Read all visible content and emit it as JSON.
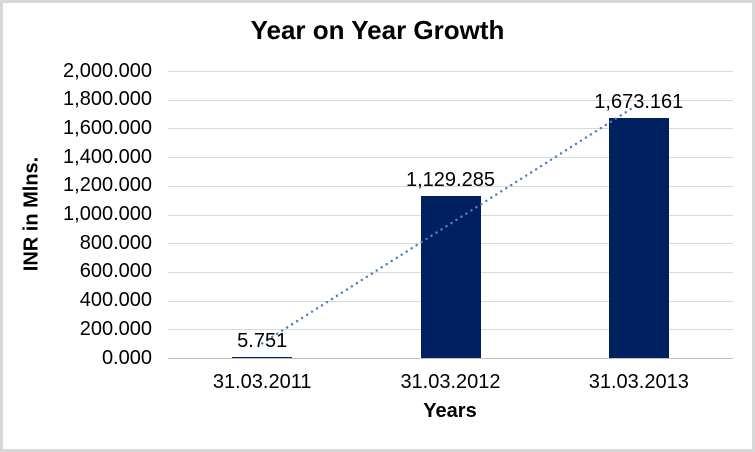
{
  "chart_data": {
    "type": "bar",
    "title": "Year on Year Growth",
    "xlabel": "Years",
    "ylabel": "INR in Mlns.",
    "categories": [
      "31.03.2011",
      "31.03.2012",
      "31.03.2013"
    ],
    "values": [
      5.751,
      1129.285,
      1673.161
    ],
    "value_labels": [
      "5.751",
      "1,129.285",
      "1,673.161"
    ],
    "ylim": [
      0,
      2000
    ],
    "ytick_step": 200,
    "ytick_labels": [
      "0.000",
      "200.000",
      "400.000",
      "600.000",
      "800.000",
      "1,000.000",
      "1,200.000",
      "1,400.000",
      "1,600.000",
      "1,800.000",
      "2,000.000"
    ],
    "grid": true,
    "legend": "none",
    "trendline": {
      "type": "linear",
      "style": "dotted",
      "color": "#4F81BD"
    },
    "colors": {
      "bar": "#002060",
      "gridline": "#D9D9D9",
      "axis_line": "#BFBFBF",
      "text": "#000000",
      "border": "#D8D8D8",
      "background": "#FFFFFF"
    }
  }
}
